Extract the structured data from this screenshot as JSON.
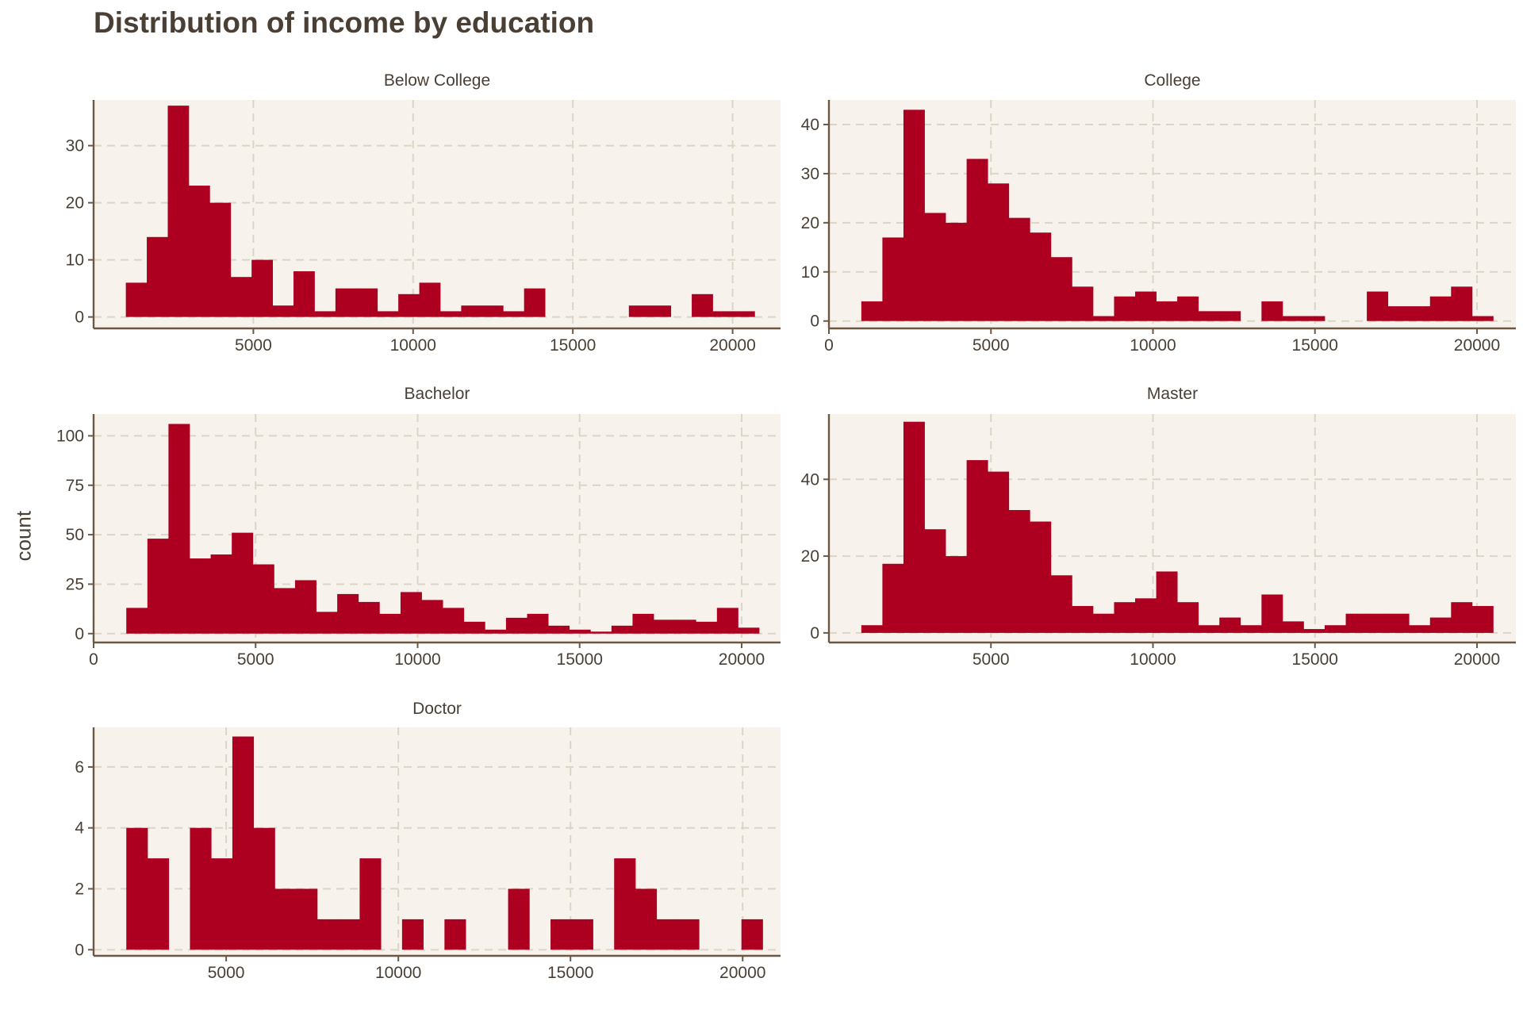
{
  "title": "Distribution of income by education",
  "ylabel": "count",
  "colors": {
    "bar": "#ad0021",
    "panel_background": "#f7f3ec",
    "grid": "#dcd5c7",
    "axis": "#6b5844",
    "text": "#4a3f35"
  },
  "chart_data": [
    {
      "type": "bar",
      "panel": "Below College",
      "bin_width": 656,
      "xlim": [
        0,
        21500
      ],
      "ylim": [
        -2,
        38
      ],
      "xticks": [
        5000,
        10000,
        15000,
        20000
      ],
      "yticks": [
        0,
        10,
        20,
        30
      ],
      "bin_starts": [
        1009,
        1665,
        2321,
        2977,
        3633,
        4289,
        4945,
        5601,
        6257,
        6913,
        7569,
        8225,
        8881,
        9537,
        10193,
        10849,
        11505,
        12161,
        12817,
        13473,
        14129,
        14785,
        15441,
        16097,
        16753,
        17409,
        18065,
        18721,
        19377,
        20033
      ],
      "values": [
        6,
        14,
        37,
        23,
        20,
        7,
        10,
        2,
        8,
        1,
        5,
        5,
        1,
        4,
        6,
        1,
        2,
        2,
        1,
        5,
        0,
        0,
        0,
        0,
        2,
        2,
        0,
        4,
        1,
        1
      ]
    },
    {
      "type": "bar",
      "panel": "College",
      "bin_width": 650,
      "xlim": [
        0,
        21200
      ],
      "ylim": [
        -1.5,
        45
      ],
      "xticks": [
        0,
        5000,
        10000,
        15000,
        20000
      ],
      "yticks": [
        0,
        10,
        20,
        30,
        40
      ],
      "bin_starts": [
        1000,
        1650,
        2300,
        2950,
        3600,
        4250,
        4900,
        5550,
        6200,
        6850,
        7500,
        8150,
        8800,
        9450,
        10100,
        10750,
        11400,
        12050,
        12700,
        13350,
        14000,
        14650,
        15300,
        15950,
        16600,
        17250,
        17900,
        18550,
        19200,
        19850
      ],
      "values": [
        4,
        17,
        43,
        22,
        20,
        33,
        28,
        21,
        18,
        13,
        7,
        1,
        5,
        6,
        4,
        5,
        2,
        2,
        0,
        4,
        1,
        1,
        0,
        0,
        6,
        3,
        3,
        5,
        7,
        1
      ]
    },
    {
      "type": "bar",
      "panel": "Bachelor",
      "bin_width": 651,
      "xlim": [
        0,
        21200
      ],
      "ylim": [
        -4.5,
        111
      ],
      "xticks": [
        0,
        5000,
        10000,
        15000,
        20000
      ],
      "yticks": [
        0,
        25,
        50,
        75,
        100
      ],
      "bin_starts": [
        1009,
        1660,
        2311,
        2962,
        3613,
        4264,
        4915,
        5566,
        6217,
        6868,
        7519,
        8170,
        8821,
        9472,
        10123,
        10774,
        11425,
        12076,
        12727,
        13378,
        14029,
        14680,
        15331,
        15982,
        16633,
        17284,
        17935,
        18586,
        19237,
        19888
      ],
      "values": [
        13,
        48,
        106,
        38,
        40,
        51,
        35,
        23,
        27,
        11,
        20,
        16,
        10,
        21,
        17,
        13,
        6,
        2,
        8,
        10,
        4,
        2,
        1,
        4,
        10,
        7,
        7,
        6,
        13,
        3
      ]
    },
    {
      "type": "bar",
      "panel": "Master",
      "bin_width": 650,
      "xlim": [
        0,
        21200
      ],
      "ylim": [
        -2.5,
        57
      ],
      "xticks": [
        5000,
        10000,
        15000,
        20000
      ],
      "yticks": [
        0,
        20,
        40
      ],
      "bin_starts": [
        1000,
        1650,
        2300,
        2950,
        3600,
        4250,
        4900,
        5550,
        6200,
        6850,
        7500,
        8150,
        8800,
        9450,
        10100,
        10750,
        11400,
        12050,
        12700,
        13350,
        14000,
        14650,
        15300,
        15950,
        16600,
        17250,
        17900,
        18550,
        19200,
        19850
      ],
      "values": [
        2,
        18,
        55,
        27,
        20,
        45,
        42,
        32,
        29,
        15,
        7,
        5,
        8,
        9,
        16,
        8,
        2,
        4,
        2,
        10,
        3,
        1,
        2,
        5,
        5,
        5,
        2,
        4,
        8,
        7
      ]
    },
    {
      "type": "bar",
      "panel": "Doctor",
      "bin_width": 616,
      "xlim": [
        1150,
        21100
      ],
      "ylim": [
        -0.2,
        7.3
      ],
      "xticks": [
        5000,
        10000,
        15000,
        20000
      ],
      "yticks": [
        0,
        2,
        4,
        6
      ],
      "bin_starts": [
        2100,
        2716,
        3332,
        3948,
        4564,
        5180,
        5796,
        6412,
        7028,
        7644,
        8260,
        8876,
        9492,
        10108,
        10724,
        11340,
        11956,
        12572,
        13188,
        13804,
        14420,
        15036,
        15652,
        16268,
        16884,
        17500,
        18116,
        18732,
        19348,
        19964
      ],
      "values": [
        4,
        3,
        0,
        4,
        3,
        7,
        4,
        2,
        2,
        1,
        1,
        3,
        0,
        1,
        0,
        1,
        0,
        0,
        2,
        0,
        1,
        1,
        0,
        3,
        2,
        1,
        1,
        0,
        0,
        1
      ]
    }
  ]
}
